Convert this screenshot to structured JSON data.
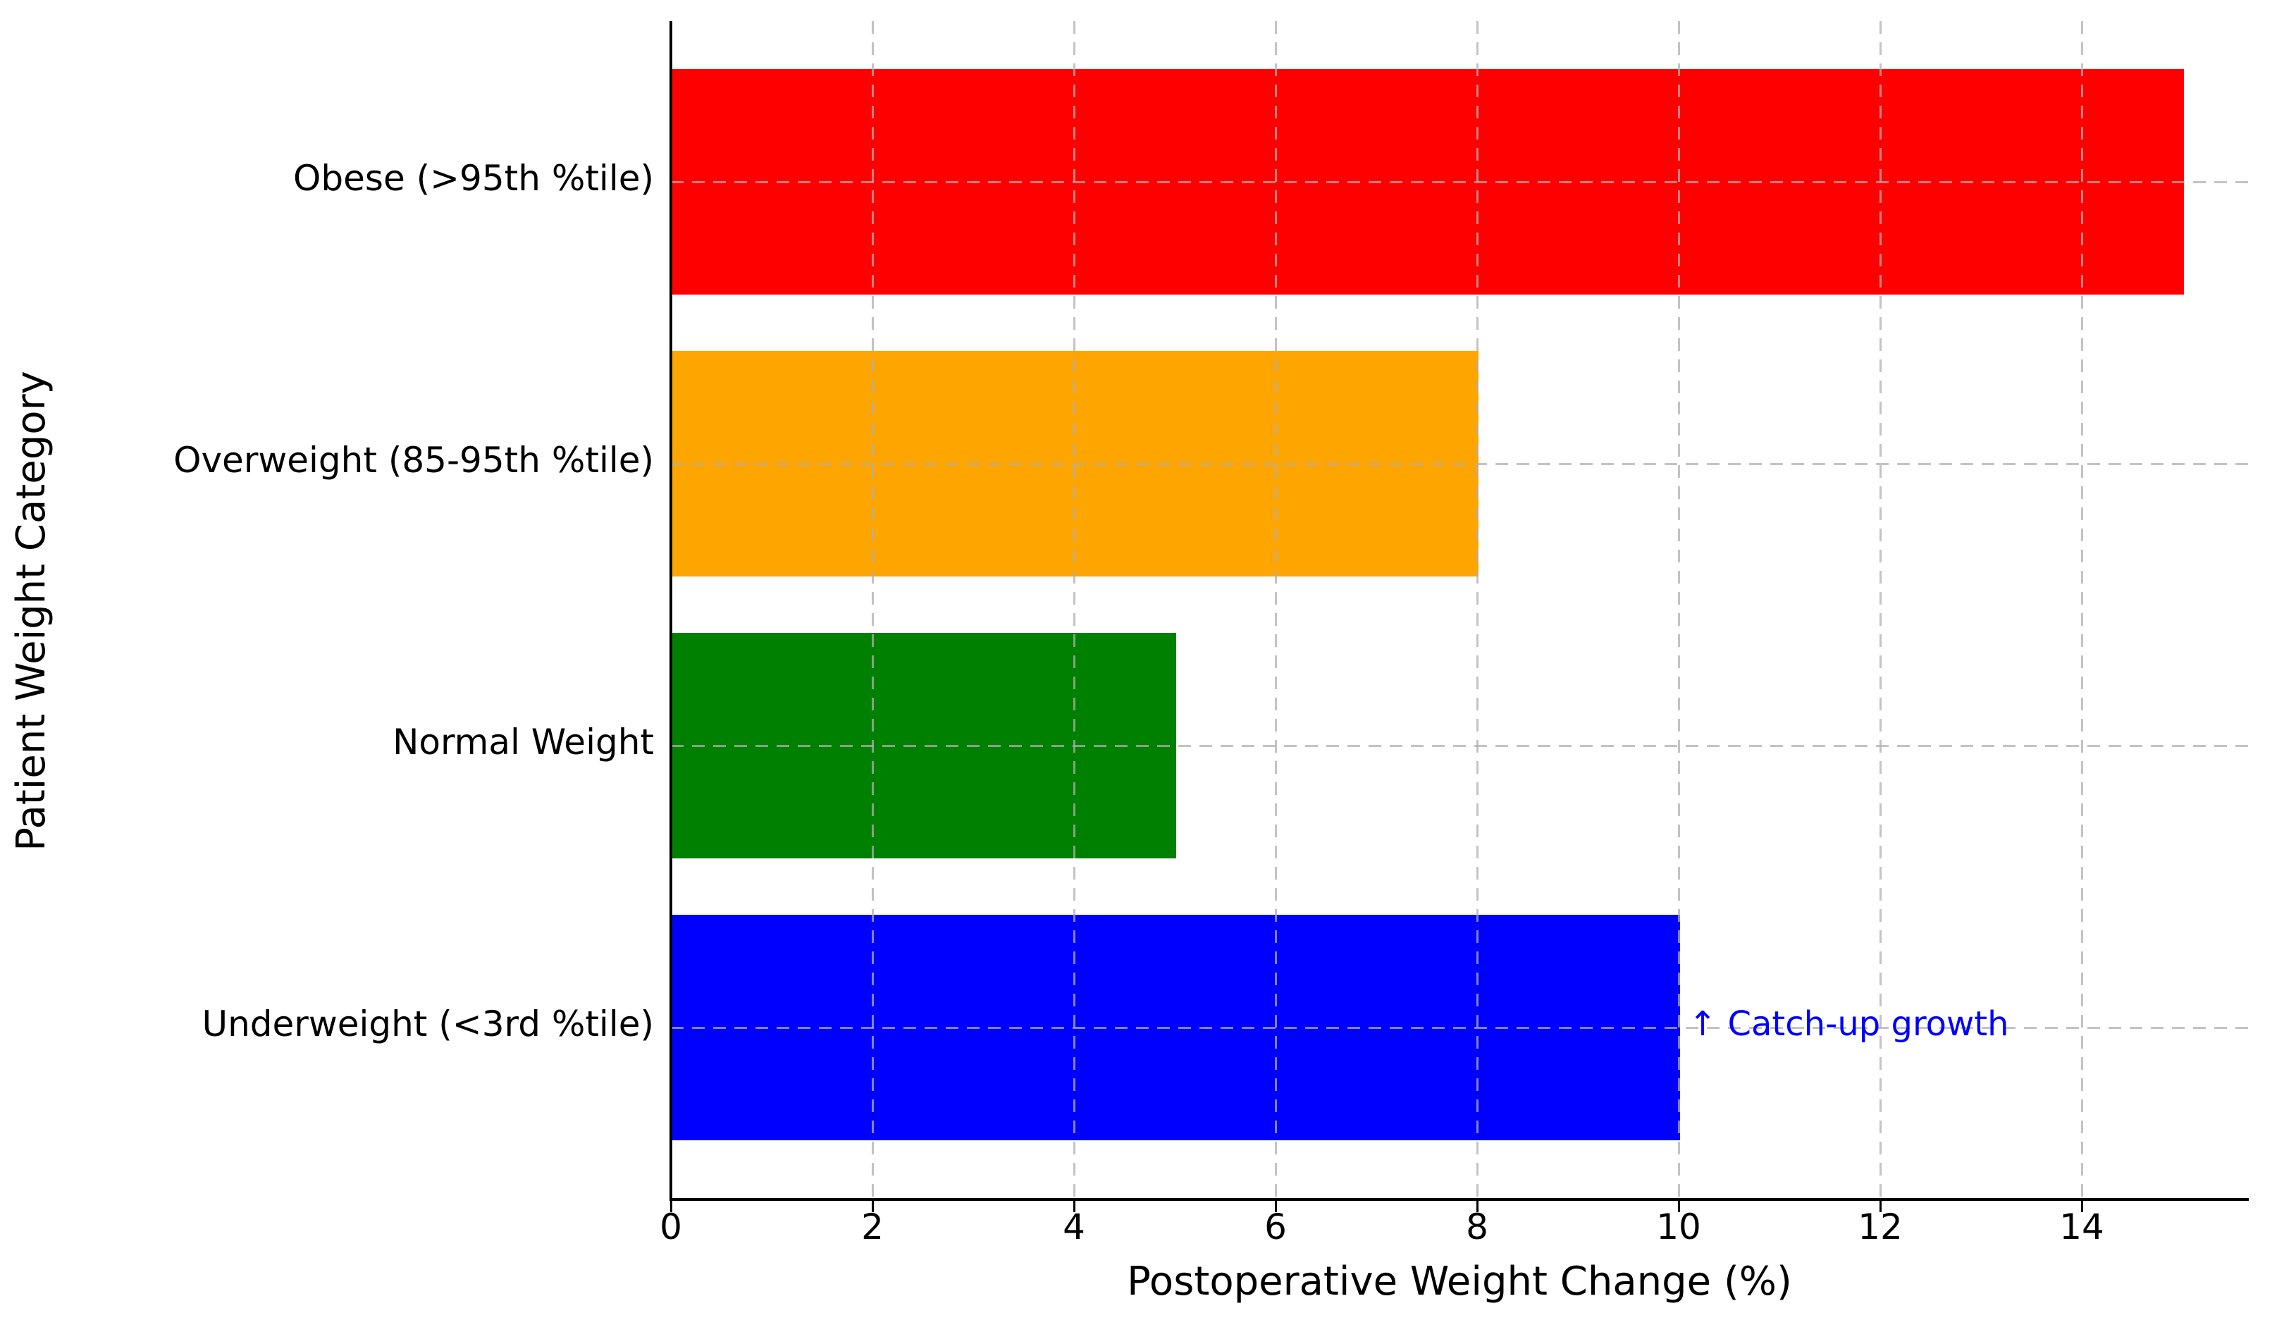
{
  "chart_data": {
    "type": "bar",
    "orientation": "horizontal",
    "title": "",
    "xlabel": "Postoperative Weight Change (%)",
    "ylabel": "Patient Weight Category",
    "categories": [
      "Obese (>95th %tile)",
      "Overweight (85-95th %tile)",
      "Normal Weight",
      "Underweight (<3rd %tile)"
    ],
    "values": [
      15,
      8,
      5,
      10
    ],
    "bar_colors": [
      "#ff0000",
      "#ffa500",
      "#008000",
      "#0000ff"
    ],
    "x_ticks": [
      0,
      2,
      4,
      6,
      8,
      10,
      12,
      14
    ],
    "xlim": [
      0,
      15.65
    ],
    "grid": {
      "style": "dashed",
      "axes": "both",
      "color": "#afafaf",
      "drawn_over_bars": true
    },
    "legend": "none",
    "annotation": {
      "text": "↑ Catch-up growth",
      "category": "Underweight (<3rd %tile)",
      "x": 10.1,
      "color": "#0000ff"
    }
  }
}
